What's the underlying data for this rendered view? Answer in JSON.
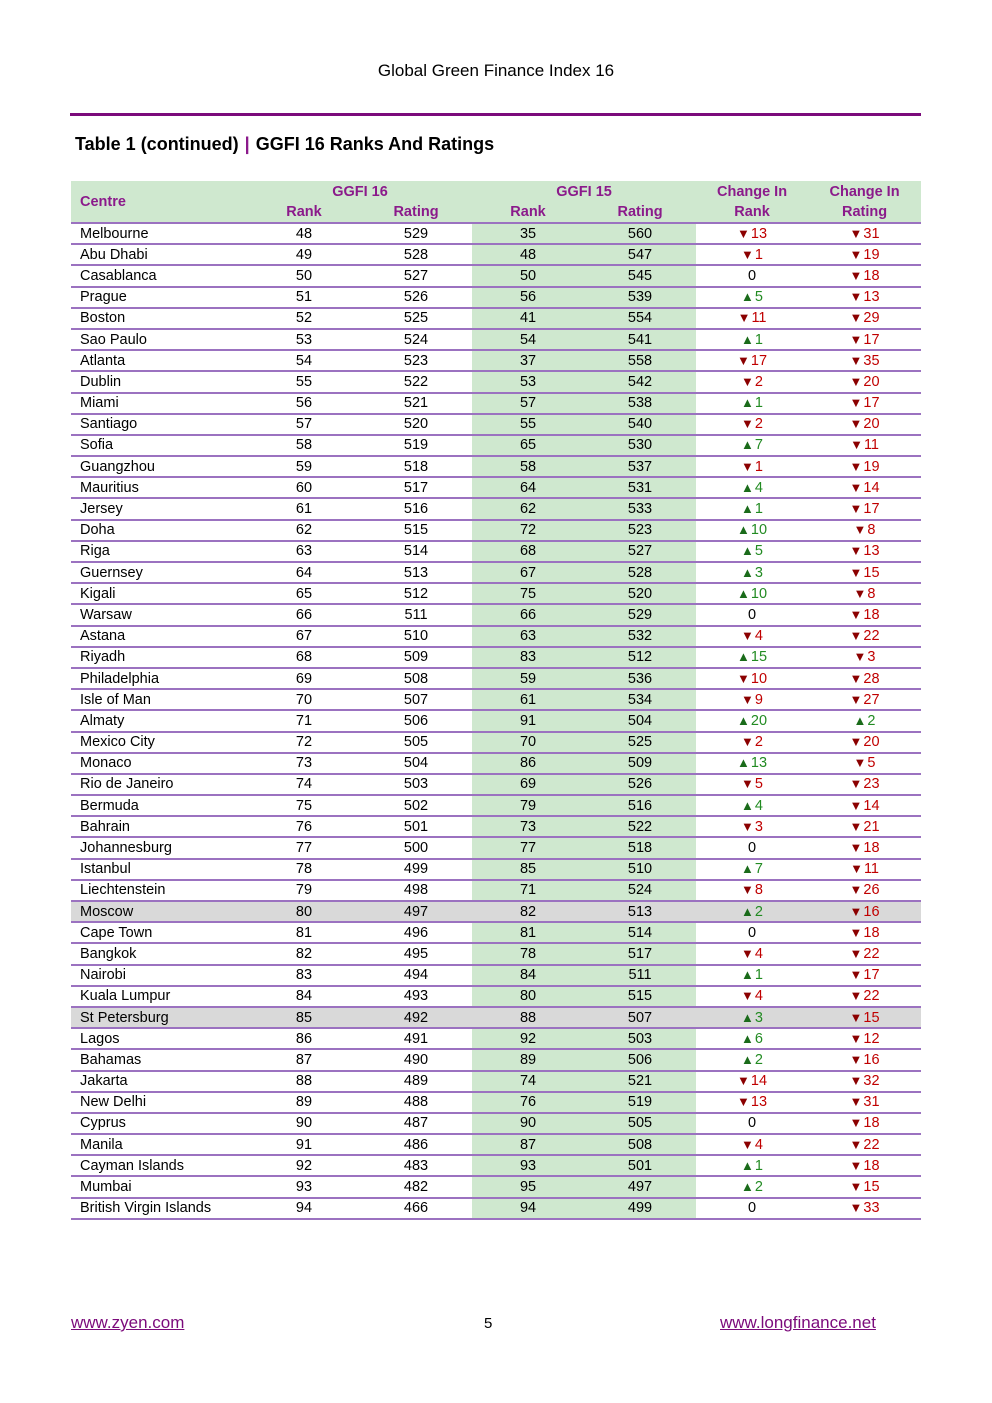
{
  "header": {
    "title": "Global Green Finance Index 16"
  },
  "table": {
    "label": "Table 1 (continued)",
    "separator": "|",
    "title": "GGFI 16 Ranks And Ratings",
    "headers": {
      "centre": "Centre",
      "ggfi16": "GGFI 16",
      "ggfi15": "GGFI 15",
      "rank": "Rank",
      "rating": "Rating",
      "change_in": "Change In"
    },
    "colors": {
      "header_bg": "#cfe8cf",
      "header_text": "#8b1a8b",
      "highlight_row": "#d9d9d9",
      "down": "#c00000",
      "up": "#228b22"
    },
    "highlighted": [
      "Moscow",
      "St Petersburg"
    ],
    "rows": [
      [
        "Melbourne",
        48,
        529,
        35,
        560,
        -13,
        -31
      ],
      [
        "Abu Dhabi",
        49,
        528,
        48,
        547,
        -1,
        -19
      ],
      [
        "Casablanca",
        50,
        527,
        50,
        545,
        0,
        -18
      ],
      [
        "Prague",
        51,
        526,
        56,
        539,
        5,
        -13
      ],
      [
        "Boston",
        52,
        525,
        41,
        554,
        -11,
        -29
      ],
      [
        "Sao Paulo",
        53,
        524,
        54,
        541,
        1,
        -17
      ],
      [
        "Atlanta",
        54,
        523,
        37,
        558,
        -17,
        -35
      ],
      [
        "Dublin",
        55,
        522,
        53,
        542,
        -2,
        -20
      ],
      [
        "Miami",
        56,
        521,
        57,
        538,
        1,
        -17
      ],
      [
        "Santiago",
        57,
        520,
        55,
        540,
        -2,
        -20
      ],
      [
        "Sofia",
        58,
        519,
        65,
        530,
        7,
        -11
      ],
      [
        "Guangzhou",
        59,
        518,
        58,
        537,
        -1,
        -19
      ],
      [
        "Mauritius",
        60,
        517,
        64,
        531,
        4,
        -14
      ],
      [
        "Jersey",
        61,
        516,
        62,
        533,
        1,
        -17
      ],
      [
        "Doha",
        62,
        515,
        72,
        523,
        10,
        -8
      ],
      [
        "Riga",
        63,
        514,
        68,
        527,
        5,
        -13
      ],
      [
        "Guernsey",
        64,
        513,
        67,
        528,
        3,
        -15
      ],
      [
        "Kigali",
        65,
        512,
        75,
        520,
        10,
        -8
      ],
      [
        "Warsaw",
        66,
        511,
        66,
        529,
        0,
        -18
      ],
      [
        "Astana",
        67,
        510,
        63,
        532,
        -4,
        -22
      ],
      [
        "Riyadh",
        68,
        509,
        83,
        512,
        15,
        -3
      ],
      [
        "Philadelphia",
        69,
        508,
        59,
        536,
        -10,
        -28
      ],
      [
        "Isle of Man",
        70,
        507,
        61,
        534,
        -9,
        -27
      ],
      [
        "Almaty",
        71,
        506,
        91,
        504,
        20,
        2
      ],
      [
        "Mexico City",
        72,
        505,
        70,
        525,
        -2,
        -20
      ],
      [
        "Monaco",
        73,
        504,
        86,
        509,
        13,
        -5
      ],
      [
        "Rio de Janeiro",
        74,
        503,
        69,
        526,
        -5,
        -23
      ],
      [
        "Bermuda",
        75,
        502,
        79,
        516,
        4,
        -14
      ],
      [
        "Bahrain",
        76,
        501,
        73,
        522,
        -3,
        -21
      ],
      [
        "Johannesburg",
        77,
        500,
        77,
        518,
        0,
        -18
      ],
      [
        "Istanbul",
        78,
        499,
        85,
        510,
        7,
        -11
      ],
      [
        "Liechtenstein",
        79,
        498,
        71,
        524,
        -8,
        -26
      ],
      [
        "Moscow",
        80,
        497,
        82,
        513,
        2,
        -16
      ],
      [
        "Cape Town",
        81,
        496,
        81,
        514,
        0,
        -18
      ],
      [
        "Bangkok",
        82,
        495,
        78,
        517,
        -4,
        -22
      ],
      [
        "Nairobi",
        83,
        494,
        84,
        511,
        1,
        -17
      ],
      [
        "Kuala Lumpur",
        84,
        493,
        80,
        515,
        -4,
        -22
      ],
      [
        "St Petersburg",
        85,
        492,
        88,
        507,
        3,
        -15
      ],
      [
        "Lagos",
        86,
        491,
        92,
        503,
        6,
        -12
      ],
      [
        "Bahamas",
        87,
        490,
        89,
        506,
        2,
        -16
      ],
      [
        "Jakarta",
        88,
        489,
        74,
        521,
        -14,
        -32
      ],
      [
        "New Delhi",
        89,
        488,
        76,
        519,
        -13,
        -31
      ],
      [
        "Cyprus",
        90,
        487,
        90,
        505,
        0,
        -18
      ],
      [
        "Manila",
        91,
        486,
        87,
        508,
        -4,
        -22
      ],
      [
        "Cayman Islands",
        92,
        483,
        93,
        501,
        1,
        -18
      ],
      [
        "Mumbai",
        93,
        482,
        95,
        497,
        2,
        -15
      ],
      [
        "British Virgin Islands",
        94,
        466,
        94,
        499,
        0,
        -33
      ]
    ]
  },
  "footer": {
    "left_link": "www.zyen.com",
    "page_number": "5",
    "right_link": "www.longfinance.net"
  }
}
